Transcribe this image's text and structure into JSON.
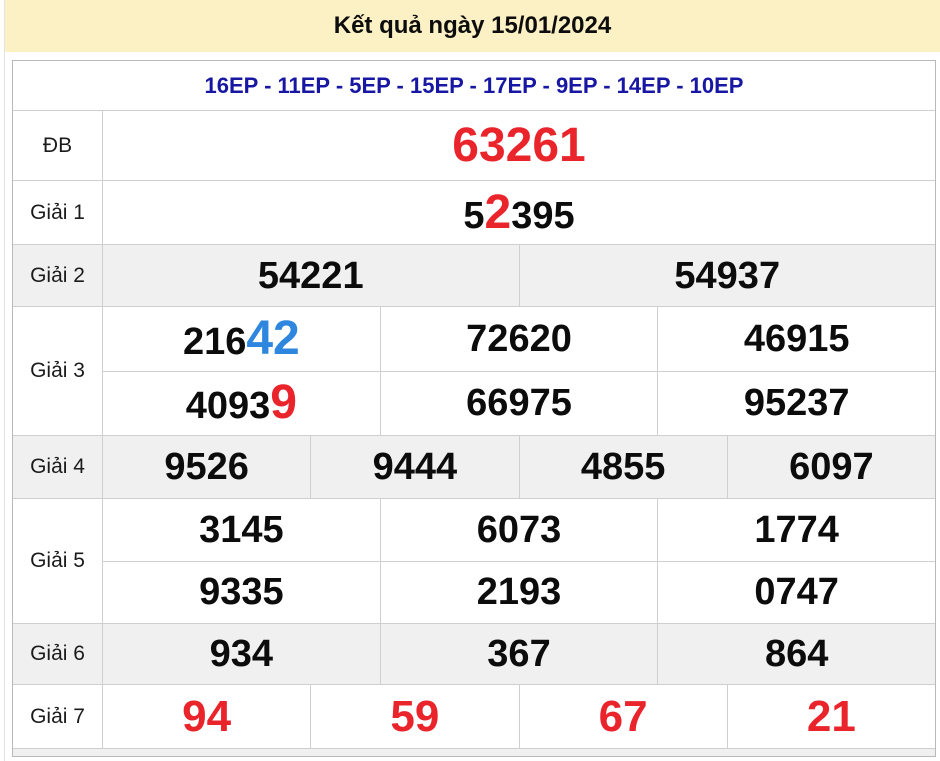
{
  "page": {
    "title": "Kết quả ngày 15/01/2024",
    "stations": "16EP - 11EP - 5EP - 15EP - 17EP - 9EP - 14EP - 10EP"
  },
  "colors": {
    "banner_bg": "#fcf0c5",
    "station_text": "#1717a3",
    "highlight_red": "#e9242b",
    "highlight_blue": "#2e86de",
    "gray_row_bg": "#f0f0f0"
  },
  "prizes": {
    "db": {
      "label": "ĐB",
      "value": "63261"
    },
    "g1": {
      "label": "Giải 1",
      "pre": "5",
      "highlight": "2",
      "post": "395"
    },
    "g2": {
      "label": "Giải 2",
      "values": [
        "54221",
        "54937"
      ]
    },
    "g3": {
      "label": "Giải 3",
      "row1": {
        "pre": "216",
        "highlight": "42",
        "col2": "72620",
        "col3": "46915"
      },
      "row2": {
        "pre": "4093",
        "highlight": "9",
        "col2": "66975",
        "col3": "95237"
      }
    },
    "g4": {
      "label": "Giải 4",
      "values": [
        "9526",
        "9444",
        "4855",
        "6097"
      ]
    },
    "g5": {
      "label": "Giải 5",
      "row1": [
        "3145",
        "6073",
        "1774"
      ],
      "row2": [
        "9335",
        "2193",
        "0747"
      ]
    },
    "g6": {
      "label": "Giải 6",
      "values": [
        "934",
        "367",
        "864"
      ]
    },
    "g7": {
      "label": "Giải 7",
      "values": [
        "94",
        "59",
        "67",
        "21"
      ]
    }
  }
}
